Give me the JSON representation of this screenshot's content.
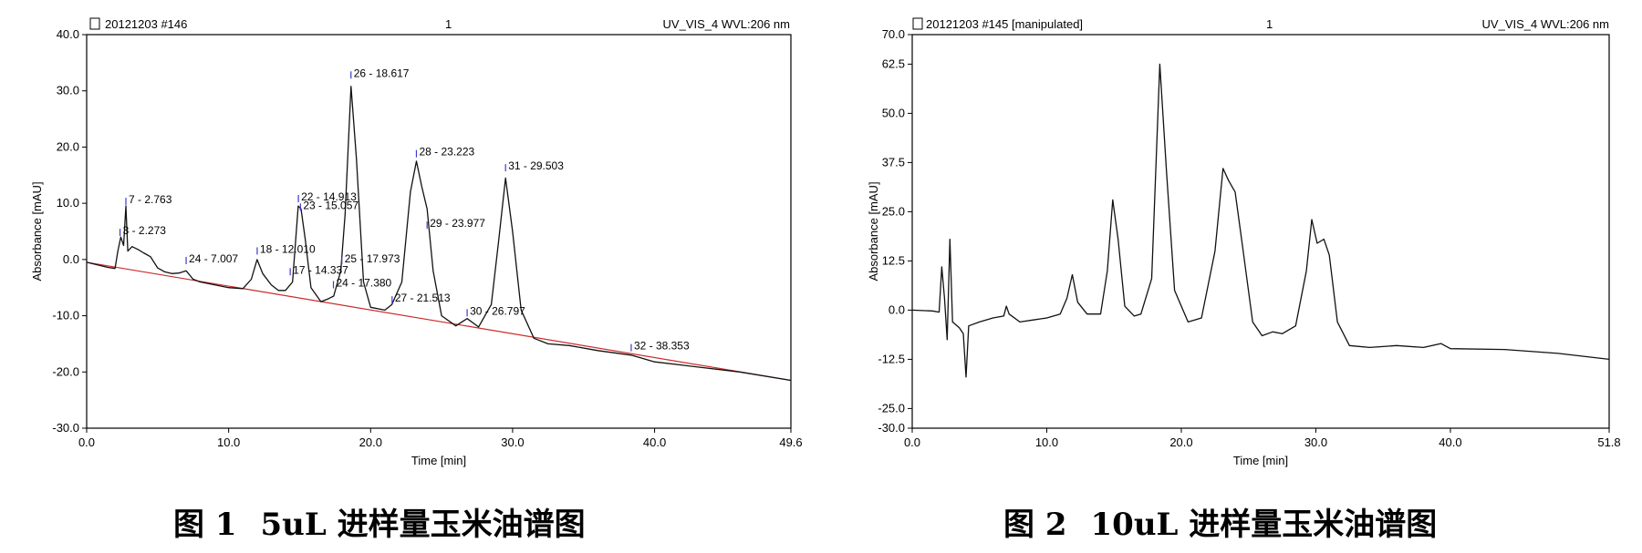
{
  "chart_data": [
    {
      "type": "line",
      "header": {
        "title": "20121203 #146",
        "channel": "1",
        "detector": "UV_VIS_4 WVL:206 nm"
      },
      "xlabel": "Time [min]",
      "ylabel": "Absorbance [mAU]",
      "xlim": [
        0.0,
        49.6
      ],
      "ylim": [
        -30.0,
        40.0
      ],
      "x_ticks": [
        "0.0",
        "10.0",
        "20.0",
        "30.0",
        "40.0",
        "49.6"
      ],
      "y_ticks": [
        "-30.0",
        "-20.0",
        "-10.0",
        "0.0",
        "10.0",
        "20.0",
        "30.0",
        "40.0"
      ],
      "baseline": {
        "start": [
          0.0,
          -0.5
        ],
        "end": [
          49.6,
          -21.5
        ]
      },
      "signal": [
        [
          0,
          -0.5
        ],
        [
          1.5,
          -1.4
        ],
        [
          2.0,
          -1.6
        ],
        [
          2.2,
          1.5
        ],
        [
          2.4,
          4.0
        ],
        [
          2.6,
          2.5
        ],
        [
          2.76,
          9.5
        ],
        [
          2.9,
          1.5
        ],
        [
          3.2,
          2.3
        ],
        [
          3.6,
          1.8
        ],
        [
          4.0,
          1.2
        ],
        [
          4.5,
          0.5
        ],
        [
          5.0,
          -1.5
        ],
        [
          5.5,
          -2.2
        ],
        [
          6.0,
          -2.5
        ],
        [
          6.5,
          -2.4
        ],
        [
          7.0,
          -2.0
        ],
        [
          7.5,
          -3.5
        ],
        [
          8.0,
          -4.0
        ],
        [
          9.0,
          -4.5
        ],
        [
          10.0,
          -5.0
        ],
        [
          11.0,
          -5.2
        ],
        [
          11.6,
          -3.5
        ],
        [
          12.0,
          0.0
        ],
        [
          12.4,
          -2.5
        ],
        [
          13.0,
          -4.5
        ],
        [
          13.5,
          -5.5
        ],
        [
          14.0,
          -5.5
        ],
        [
          14.5,
          -4.0
        ],
        [
          14.9,
          9.5
        ],
        [
          15.1,
          9.0
        ],
        [
          15.4,
          3.5
        ],
        [
          15.8,
          -5.0
        ],
        [
          16.5,
          -7.5
        ],
        [
          17.0,
          -7.0
        ],
        [
          17.4,
          -6.5
        ],
        [
          17.9,
          -2.0
        ],
        [
          18.2,
          8.0
        ],
        [
          18.617,
          30.8
        ],
        [
          19.0,
          18.0
        ],
        [
          19.5,
          -4.0
        ],
        [
          20.0,
          -8.5
        ],
        [
          21.0,
          -9.0
        ],
        [
          21.5,
          -8.0
        ],
        [
          22.2,
          -4.0
        ],
        [
          22.8,
          12.0
        ],
        [
          23.223,
          17.5
        ],
        [
          23.6,
          13.0
        ],
        [
          23.977,
          9.0
        ],
        [
          24.4,
          -2.0
        ],
        [
          25.0,
          -10.0
        ],
        [
          26.0,
          -11.8
        ],
        [
          26.8,
          -10.5
        ],
        [
          27.6,
          -12.0
        ],
        [
          28.5,
          -8.0
        ],
        [
          29.0,
          3.0
        ],
        [
          29.503,
          14.5
        ],
        [
          30.0,
          5.0
        ],
        [
          30.6,
          -9.0
        ],
        [
          31.5,
          -14.0
        ],
        [
          32.5,
          -15.0
        ],
        [
          34.0,
          -15.3
        ],
        [
          36.0,
          -16.2
        ],
        [
          38.35,
          -17.0
        ],
        [
          40.0,
          -18.2
        ],
        [
          42.0,
          -18.8
        ],
        [
          46.0,
          -20.0
        ],
        [
          49.6,
          -21.5
        ]
      ],
      "peak_labels": [
        {
          "text": "7 - 2.763",
          "x": 2.763,
          "y": 10.0
        },
        {
          "text": "3 - 2.273",
          "x": 2.35,
          "y": 4.5
        },
        {
          "text": "26 - 18.617",
          "x": 18.617,
          "y": 32.5
        },
        {
          "text": "28 - 23.223",
          "x": 23.223,
          "y": 18.5
        },
        {
          "text": "31 - 29.503",
          "x": 29.503,
          "y": 16.0
        },
        {
          "text": "22 - 14.913",
          "x": 14.913,
          "y": 10.5
        },
        {
          "text": "23 - 15.057",
          "x": 15.057,
          "y": 9.0
        },
        {
          "text": "29 - 23.977",
          "x": 23.977,
          "y": 5.8
        },
        {
          "text": "18 - 12.010",
          "x": 12.01,
          "y": 1.2
        },
        {
          "text": "25 - 17.973",
          "x": 17.973,
          "y": -0.5
        },
        {
          "text": "24 - 7.007",
          "x": 7.007,
          "y": -0.5
        },
        {
          "text": "17 - 14.337",
          "x": 14.337,
          "y": -2.5
        },
        {
          "text": "24 - 17.380",
          "x": 17.38,
          "y": -4.8
        },
        {
          "text": "27 - 21.513",
          "x": 21.513,
          "y": -7.5
        },
        {
          "text": "30 - 26.797",
          "x": 26.797,
          "y": -9.8
        },
        {
          "text": "32 - 38.353",
          "x": 38.353,
          "y": -16.0
        }
      ]
    },
    {
      "type": "line",
      "header": {
        "title": "20121203 #145 [manipulated]",
        "channel": "1",
        "detector": "UV_VIS_4 WVL:206 nm"
      },
      "xlabel": "Time [min]",
      "ylabel": "Absorbance [mAU]",
      "xlim": [
        0.0,
        51.8
      ],
      "ylim": [
        -30.0,
        70.0
      ],
      "x_ticks": [
        "0.0",
        "10.0",
        "20.0",
        "30.0",
        "40.0",
        "51.8"
      ],
      "y_ticks": [
        "-30.0",
        "-25.0",
        "-12.5",
        "0.0",
        "12.5",
        "25.0",
        "37.5",
        "50.0",
        "62.5",
        "70.0"
      ],
      "signal": [
        [
          0,
          0.0
        ],
        [
          1.5,
          -0.2
        ],
        [
          2.0,
          -0.5
        ],
        [
          2.2,
          11.0
        ],
        [
          2.4,
          3.0
        ],
        [
          2.6,
          -7.5
        ],
        [
          2.8,
          18.0
        ],
        [
          3.0,
          -3.0
        ],
        [
          3.5,
          -4.5
        ],
        [
          3.8,
          -6.0
        ],
        [
          4.0,
          -17.0
        ],
        [
          4.2,
          -4.0
        ],
        [
          5.0,
          -3.0
        ],
        [
          6.0,
          -2.0
        ],
        [
          6.8,
          -1.5
        ],
        [
          7.0,
          1.0
        ],
        [
          7.2,
          -1.0
        ],
        [
          8.0,
          -3.0
        ],
        [
          9.0,
          -2.5
        ],
        [
          10.0,
          -2.0
        ],
        [
          11.0,
          -1.0
        ],
        [
          11.5,
          3.0
        ],
        [
          11.9,
          9.0
        ],
        [
          12.3,
          2.0
        ],
        [
          13.0,
          -1.0
        ],
        [
          14.0,
          -1.0
        ],
        [
          14.5,
          10.0
        ],
        [
          14.9,
          28.0
        ],
        [
          15.3,
          18.0
        ],
        [
          15.8,
          1.0
        ],
        [
          16.5,
          -1.5
        ],
        [
          17.0,
          -1.0
        ],
        [
          17.8,
          8.0
        ],
        [
          18.4,
          62.5
        ],
        [
          18.9,
          35.0
        ],
        [
          19.5,
          5.0
        ],
        [
          20.5,
          -3.0
        ],
        [
          21.5,
          -2.0
        ],
        [
          22.5,
          15.0
        ],
        [
          23.1,
          36.0
        ],
        [
          23.5,
          33.0
        ],
        [
          24.0,
          30.0
        ],
        [
          24.6,
          15.0
        ],
        [
          25.3,
          -3.0
        ],
        [
          26.0,
          -6.5
        ],
        [
          26.8,
          -5.5
        ],
        [
          27.5,
          -6.0
        ],
        [
          28.5,
          -4.0
        ],
        [
          29.3,
          10.0
        ],
        [
          29.7,
          23.0
        ],
        [
          30.1,
          17.0
        ],
        [
          30.6,
          18.0
        ],
        [
          31.0,
          14.0
        ],
        [
          31.6,
          -3.0
        ],
        [
          32.5,
          -9.0
        ],
        [
          34.0,
          -9.5
        ],
        [
          36.0,
          -9.0
        ],
        [
          38.0,
          -9.5
        ],
        [
          39.3,
          -8.5
        ],
        [
          40.0,
          -9.8
        ],
        [
          44.0,
          -10.0
        ],
        [
          48.0,
          -11.0
        ],
        [
          51.8,
          -12.5
        ]
      ]
    }
  ],
  "captions": [
    {
      "num": "图 1",
      "text": "5uL 进样量玉米油谱图"
    },
    {
      "num": "图 2",
      "text": "10uL 进样量玉米油谱图"
    }
  ]
}
